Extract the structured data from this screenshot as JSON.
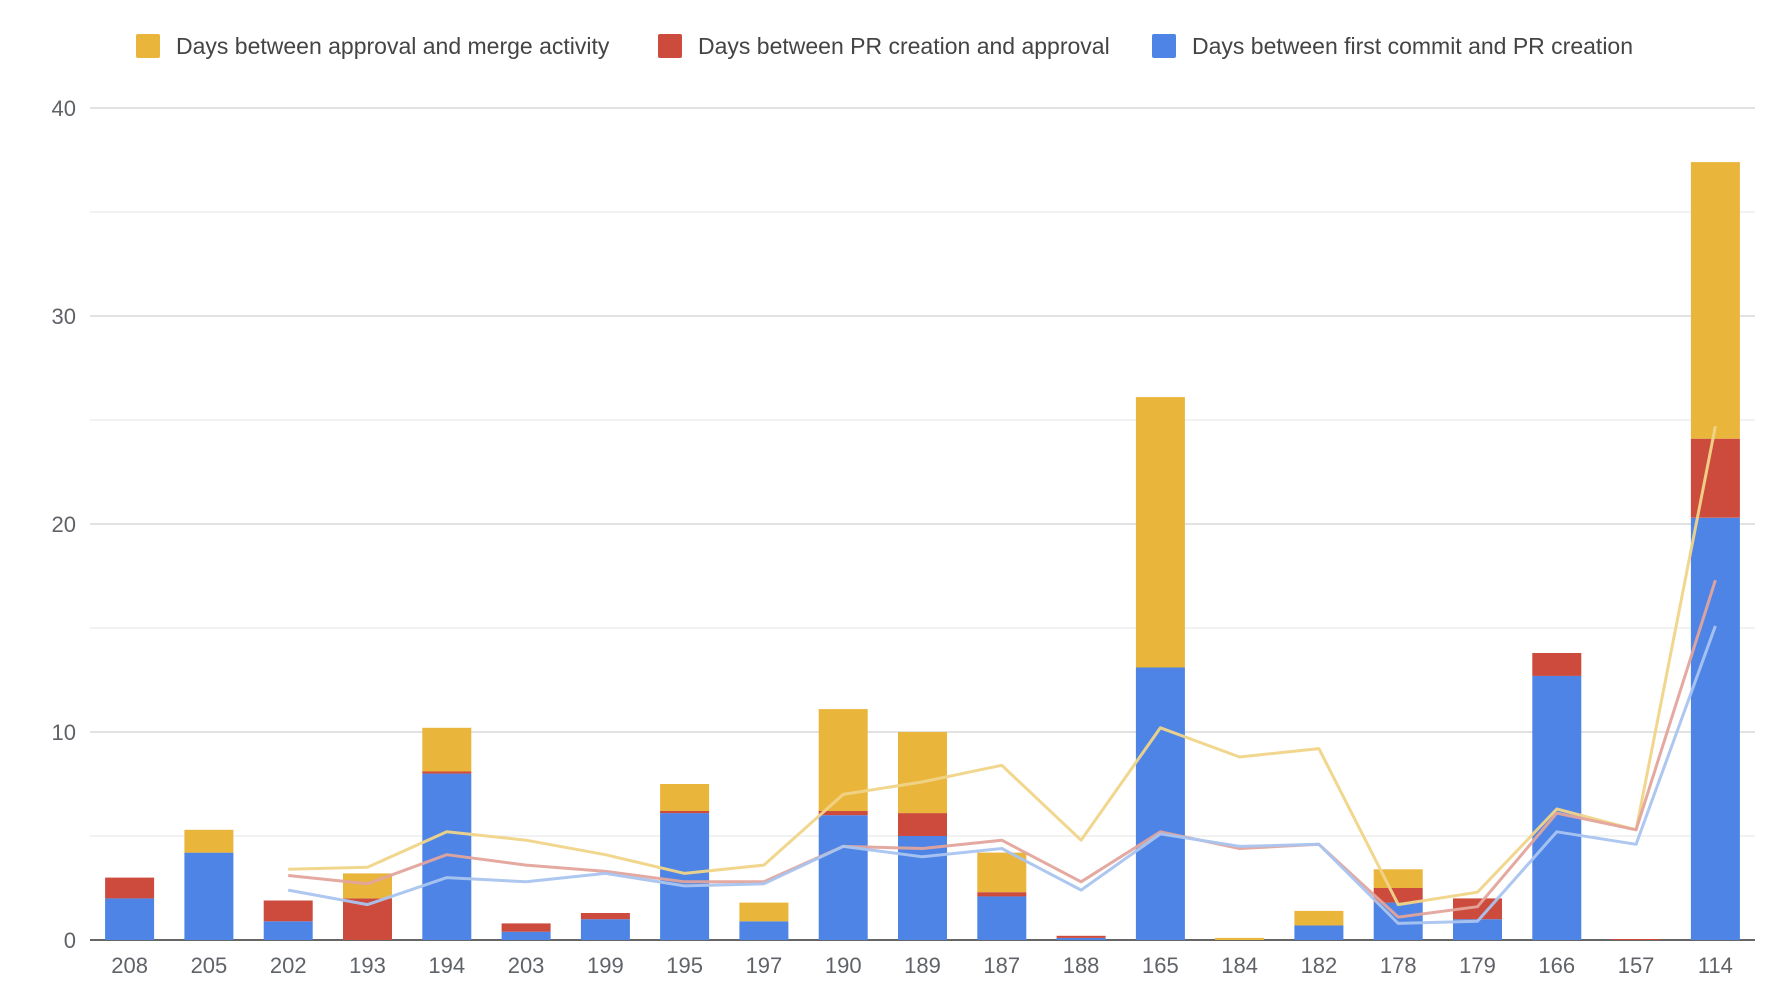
{
  "chart_data": {
    "type": "bar",
    "stacked": true,
    "categories": [
      "208",
      "205",
      "202",
      "193",
      "194",
      "203",
      "199",
      "195",
      "197",
      "190",
      "189",
      "187",
      "188",
      "165",
      "184",
      "182",
      "178",
      "179",
      "166",
      "157",
      "114"
    ],
    "series": [
      {
        "name": "Days between first commit and PR creation",
        "color": "#4e84e6",
        "values": [
          2.0,
          4.2,
          0.9,
          0.0,
          8.0,
          0.4,
          1.0,
          6.1,
          0.9,
          6.0,
          5.0,
          2.1,
          0.1,
          13.1,
          0.0,
          0.7,
          1.8,
          1.0,
          12.7,
          0.0,
          20.3
        ]
      },
      {
        "name": "Days between PR creation and approval",
        "color": "#cc4b3c",
        "values": [
          1.0,
          0.0,
          1.0,
          2.0,
          0.1,
          0.4,
          0.3,
          0.1,
          0.0,
          0.2,
          1.1,
          0.2,
          0.1,
          0.0,
          0.0,
          0.0,
          0.7,
          1.0,
          1.1,
          0.05,
          3.8
        ]
      },
      {
        "name": "Days between approval and merge activity",
        "color": "#e9b53b",
        "values": [
          0.0,
          1.1,
          0.0,
          1.2,
          2.1,
          0.0,
          0.0,
          1.3,
          0.9,
          4.9,
          3.9,
          1.9,
          0.0,
          13.0,
          0.1,
          0.7,
          0.9,
          0.0,
          0.0,
          0.0,
          13.3
        ]
      }
    ],
    "trendlines": [
      {
        "series_index": 2,
        "color": "#f0d488",
        "values": [
          null,
          null,
          3.4,
          3.5,
          5.2,
          4.8,
          4.1,
          3.2,
          3.6,
          7.0,
          7.6,
          8.4,
          4.8,
          10.2,
          8.8,
          9.2,
          1.7,
          2.3,
          6.3,
          5.3,
          24.7
        ]
      },
      {
        "series_index": 1,
        "color": "#e3a49b",
        "values": [
          null,
          null,
          3.1,
          2.7,
          4.1,
          3.6,
          3.3,
          2.8,
          2.8,
          4.5,
          4.4,
          4.8,
          2.8,
          5.2,
          4.4,
          4.6,
          1.1,
          1.6,
          6.1,
          5.3,
          17.3
        ]
      },
      {
        "series_index": 0,
        "color": "#a9c4ef",
        "values": [
          null,
          null,
          2.4,
          1.7,
          3.0,
          2.8,
          3.2,
          2.6,
          2.7,
          4.5,
          4.0,
          4.4,
          2.4,
          5.1,
          4.5,
          4.6,
          0.8,
          0.9,
          5.2,
          4.6,
          15.1
        ]
      }
    ],
    "ylim": [
      0,
      40
    ],
    "yticks": [
      0,
      10,
      20,
      30,
      40
    ],
    "grid": true,
    "legend_position": "top"
  }
}
